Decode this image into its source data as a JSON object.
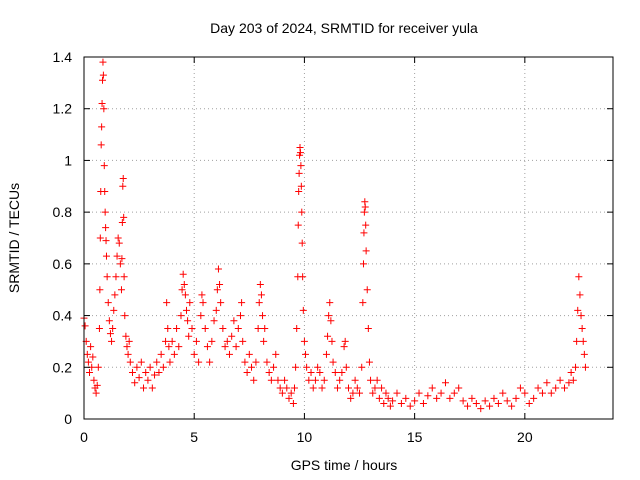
{
  "chart_data": {
    "type": "scatter",
    "title": "Day 203 of 2024, SRMTID for receiver yula",
    "xlabel": "GPS time / hours",
    "ylabel": "SRMTID / TECUs",
    "xlim": [
      0,
      24
    ],
    "ylim": [
      0,
      1.4
    ],
    "xticks": [
      0,
      5,
      10,
      15,
      20
    ],
    "xtick_labels": [
      "0",
      "5",
      "10",
      "15",
      "20"
    ],
    "yticks": [
      0,
      0.2,
      0.4,
      0.6,
      0.8,
      1.0,
      1.2,
      1.4
    ],
    "ytick_labels": [
      "0",
      "0.2",
      "0.4",
      "0.6",
      "0.8",
      "1",
      "1.2",
      "1.4"
    ],
    "grid": true,
    "marker": "+",
    "color": "#ff0000",
    "series": [
      {
        "name": "SRMTID",
        "points": [
          [
            0.0,
            0.39
          ],
          [
            0.05,
            0.36
          ],
          [
            0.1,
            0.3
          ],
          [
            0.15,
            0.25
          ],
          [
            0.2,
            0.22
          ],
          [
            0.25,
            0.18
          ],
          [
            0.3,
            0.28
          ],
          [
            0.35,
            0.2
          ],
          [
            0.4,
            0.24
          ],
          [
            0.45,
            0.15
          ],
          [
            0.5,
            0.12
          ],
          [
            0.55,
            0.1
          ],
          [
            0.6,
            0.13
          ],
          [
            0.65,
            0.2
          ],
          [
            0.7,
            0.35
          ],
          [
            0.72,
            0.5
          ],
          [
            0.74,
            0.7
          ],
          [
            0.76,
            0.88
          ],
          [
            0.78,
            1.06
          ],
          [
            0.8,
            1.13
          ],
          [
            0.82,
            1.22
          ],
          [
            0.84,
            1.31
          ],
          [
            0.86,
            1.38
          ],
          [
            0.88,
            1.33
          ],
          [
            0.9,
            1.2
          ],
          [
            0.92,
            0.98
          ],
          [
            0.94,
            0.88
          ],
          [
            0.96,
            0.8
          ],
          [
            0.98,
            0.74
          ],
          [
            1.0,
            0.69
          ],
          [
            1.02,
            0.63
          ],
          [
            1.05,
            0.55
          ],
          [
            1.1,
            0.45
          ],
          [
            1.15,
            0.38
          ],
          [
            1.2,
            0.33
          ],
          [
            1.25,
            0.3
          ],
          [
            1.3,
            0.35
          ],
          [
            1.35,
            0.42
          ],
          [
            1.4,
            0.48
          ],
          [
            1.45,
            0.55
          ],
          [
            1.5,
            0.63
          ],
          [
            1.55,
            0.7
          ],
          [
            1.6,
            0.68
          ],
          [
            1.65,
            0.6
          ],
          [
            1.7,
            0.5
          ],
          [
            1.72,
            0.62
          ],
          [
            1.74,
            0.76
          ],
          [
            1.76,
            0.9
          ],
          [
            1.78,
            0.93
          ],
          [
            1.8,
            0.78
          ],
          [
            1.82,
            0.55
          ],
          [
            1.85,
            0.4
          ],
          [
            1.9,
            0.32
          ],
          [
            1.95,
            0.28
          ],
          [
            2.0,
            0.25
          ],
          [
            2.05,
            0.3
          ],
          [
            2.1,
            0.22
          ],
          [
            2.2,
            0.18
          ],
          [
            2.3,
            0.14
          ],
          [
            2.4,
            0.2
          ],
          [
            2.5,
            0.16
          ],
          [
            2.6,
            0.22
          ],
          [
            2.7,
            0.12
          ],
          [
            2.8,
            0.18
          ],
          [
            2.9,
            0.15
          ],
          [
            3.0,
            0.2
          ],
          [
            3.1,
            0.12
          ],
          [
            3.2,
            0.17
          ],
          [
            3.3,
            0.22
          ],
          [
            3.4,
            0.18
          ],
          [
            3.5,
            0.25
          ],
          [
            3.6,
            0.2
          ],
          [
            3.7,
            0.3
          ],
          [
            3.75,
            0.45
          ],
          [
            3.8,
            0.35
          ],
          [
            3.85,
            0.28
          ],
          [
            3.9,
            0.22
          ],
          [
            4.0,
            0.3
          ],
          [
            4.1,
            0.25
          ],
          [
            4.2,
            0.35
          ],
          [
            4.3,
            0.28
          ],
          [
            4.4,
            0.4
          ],
          [
            4.45,
            0.5
          ],
          [
            4.5,
            0.56
          ],
          [
            4.55,
            0.52
          ],
          [
            4.6,
            0.48
          ],
          [
            4.65,
            0.42
          ],
          [
            4.7,
            0.38
          ],
          [
            4.75,
            0.32
          ],
          [
            4.8,
            0.45
          ],
          [
            4.9,
            0.35
          ],
          [
            5.0,
            0.25
          ],
          [
            5.1,
            0.3
          ],
          [
            5.2,
            0.22
          ],
          [
            5.3,
            0.4
          ],
          [
            5.35,
            0.48
          ],
          [
            5.4,
            0.45
          ],
          [
            5.5,
            0.35
          ],
          [
            5.6,
            0.28
          ],
          [
            5.7,
            0.22
          ],
          [
            5.8,
            0.3
          ],
          [
            5.9,
            0.38
          ],
          [
            6.0,
            0.42
          ],
          [
            6.05,
            0.5
          ],
          [
            6.1,
            0.58
          ],
          [
            6.15,
            0.52
          ],
          [
            6.2,
            0.45
          ],
          [
            6.3,
            0.35
          ],
          [
            6.4,
            0.28
          ],
          [
            6.5,
            0.3
          ],
          [
            6.6,
            0.25
          ],
          [
            6.7,
            0.32
          ],
          [
            6.8,
            0.38
          ],
          [
            6.9,
            0.28
          ],
          [
            7.0,
            0.35
          ],
          [
            7.1,
            0.4
          ],
          [
            7.15,
            0.45
          ],
          [
            7.2,
            0.3
          ],
          [
            7.3,
            0.22
          ],
          [
            7.4,
            0.18
          ],
          [
            7.5,
            0.25
          ],
          [
            7.6,
            0.2
          ],
          [
            7.7,
            0.15
          ],
          [
            7.8,
            0.22
          ],
          [
            7.9,
            0.35
          ],
          [
            7.95,
            0.45
          ],
          [
            8.0,
            0.52
          ],
          [
            8.05,
            0.48
          ],
          [
            8.1,
            0.4
          ],
          [
            8.15,
            0.3
          ],
          [
            8.2,
            0.35
          ],
          [
            8.3,
            0.22
          ],
          [
            8.4,
            0.18
          ],
          [
            8.5,
            0.15
          ],
          [
            8.6,
            0.2
          ],
          [
            8.7,
            0.25
          ],
          [
            8.8,
            0.15
          ],
          [
            8.9,
            0.12
          ],
          [
            9.0,
            0.1
          ],
          [
            9.1,
            0.15
          ],
          [
            9.2,
            0.12
          ],
          [
            9.3,
            0.08
          ],
          [
            9.4,
            0.1
          ],
          [
            9.5,
            0.06
          ],
          [
            9.55,
            0.12
          ],
          [
            9.6,
            0.2
          ],
          [
            9.65,
            0.35
          ],
          [
            9.7,
            0.55
          ],
          [
            9.72,
            0.75
          ],
          [
            9.74,
            0.88
          ],
          [
            9.76,
            0.95
          ],
          [
            9.78,
            1.02
          ],
          [
            9.8,
            1.05
          ],
          [
            9.82,
            1.03
          ],
          [
            9.84,
            0.98
          ],
          [
            9.86,
            0.9
          ],
          [
            9.88,
            0.8
          ],
          [
            9.9,
            0.68
          ],
          [
            9.92,
            0.55
          ],
          [
            9.95,
            0.42
          ],
          [
            10.0,
            0.3
          ],
          [
            10.05,
            0.25
          ],
          [
            10.1,
            0.2
          ],
          [
            10.2,
            0.15
          ],
          [
            10.3,
            0.18
          ],
          [
            10.4,
            0.12
          ],
          [
            10.5,
            0.15
          ],
          [
            10.6,
            0.2
          ],
          [
            10.7,
            0.18
          ],
          [
            10.8,
            0.12
          ],
          [
            10.9,
            0.15
          ],
          [
            11.0,
            0.25
          ],
          [
            11.05,
            0.32
          ],
          [
            11.1,
            0.4
          ],
          [
            11.15,
            0.45
          ],
          [
            11.2,
            0.38
          ],
          [
            11.25,
            0.3
          ],
          [
            11.3,
            0.22
          ],
          [
            11.4,
            0.18
          ],
          [
            11.5,
            0.12
          ],
          [
            11.6,
            0.15
          ],
          [
            11.7,
            0.18
          ],
          [
            11.8,
            0.28
          ],
          [
            11.85,
            0.3
          ],
          [
            11.9,
            0.2
          ],
          [
            12.0,
            0.12
          ],
          [
            12.1,
            0.08
          ],
          [
            12.2,
            0.1
          ],
          [
            12.3,
            0.15
          ],
          [
            12.4,
            0.12
          ],
          [
            12.5,
            0.1
          ],
          [
            12.6,
            0.2
          ],
          [
            12.65,
            0.45
          ],
          [
            12.68,
            0.6
          ],
          [
            12.7,
            0.72
          ],
          [
            12.72,
            0.8
          ],
          [
            12.74,
            0.84
          ],
          [
            12.76,
            0.82
          ],
          [
            12.78,
            0.75
          ],
          [
            12.8,
            0.65
          ],
          [
            12.85,
            0.5
          ],
          [
            12.9,
            0.35
          ],
          [
            12.95,
            0.22
          ],
          [
            13.0,
            0.15
          ],
          [
            13.1,
            0.1
          ],
          [
            13.2,
            0.12
          ],
          [
            13.3,
            0.15
          ],
          [
            13.4,
            0.08
          ],
          [
            13.5,
            0.12
          ],
          [
            13.6,
            0.06
          ],
          [
            13.7,
            0.1
          ],
          [
            13.8,
            0.08
          ],
          [
            13.9,
            0.05
          ],
          [
            14.0,
            0.07
          ],
          [
            14.2,
            0.1
          ],
          [
            14.4,
            0.06
          ],
          [
            14.6,
            0.08
          ],
          [
            14.8,
            0.05
          ],
          [
            15.0,
            0.07
          ],
          [
            15.2,
            0.1
          ],
          [
            15.4,
            0.06
          ],
          [
            15.6,
            0.09
          ],
          [
            15.8,
            0.12
          ],
          [
            16.0,
            0.08
          ],
          [
            16.2,
            0.1
          ],
          [
            16.4,
            0.14
          ],
          [
            16.6,
            0.08
          ],
          [
            16.8,
            0.1
          ],
          [
            17.0,
            0.12
          ],
          [
            17.2,
            0.07
          ],
          [
            17.4,
            0.05
          ],
          [
            17.6,
            0.08
          ],
          [
            17.8,
            0.06
          ],
          [
            18.0,
            0.04
          ],
          [
            18.2,
            0.07
          ],
          [
            18.4,
            0.05
          ],
          [
            18.6,
            0.08
          ],
          [
            18.8,
            0.06
          ],
          [
            19.0,
            0.1
          ],
          [
            19.2,
            0.07
          ],
          [
            19.4,
            0.05
          ],
          [
            19.6,
            0.08
          ],
          [
            19.8,
            0.12
          ],
          [
            20.0,
            0.1
          ],
          [
            20.2,
            0.06
          ],
          [
            20.4,
            0.08
          ],
          [
            20.6,
            0.12
          ],
          [
            20.8,
            0.1
          ],
          [
            21.0,
            0.14
          ],
          [
            21.2,
            0.1
          ],
          [
            21.4,
            0.12
          ],
          [
            21.6,
            0.15
          ],
          [
            21.8,
            0.12
          ],
          [
            22.0,
            0.14
          ],
          [
            22.1,
            0.18
          ],
          [
            22.2,
            0.15
          ],
          [
            22.3,
            0.2
          ],
          [
            22.35,
            0.3
          ],
          [
            22.4,
            0.42
          ],
          [
            22.45,
            0.55
          ],
          [
            22.5,
            0.48
          ],
          [
            22.55,
            0.4
          ],
          [
            22.6,
            0.35
          ],
          [
            22.65,
            0.3
          ],
          [
            22.7,
            0.25
          ],
          [
            22.75,
            0.2
          ]
        ]
      }
    ]
  }
}
